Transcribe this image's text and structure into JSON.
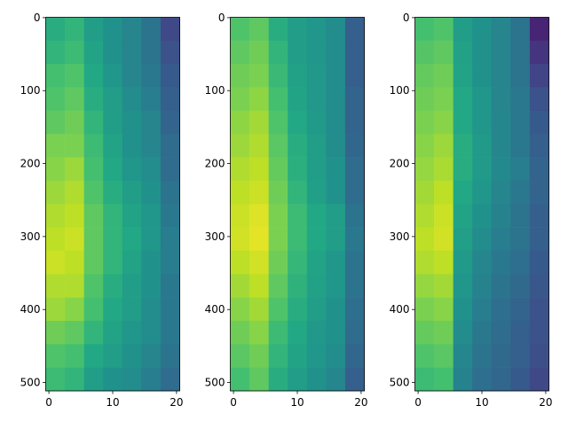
{
  "chart_data": [
    {
      "type": "heatmap",
      "colormap": "viridis",
      "xlim": [
        -0.5,
        20.5
      ],
      "ylim": [
        511.5,
        -0.5
      ],
      "xticks": [
        0,
        10,
        20
      ],
      "yticks": [
        0,
        100,
        200,
        300,
        400,
        500
      ],
      "values": [
        [
          0.62,
          0.65,
          0.55,
          0.5,
          0.45,
          0.38,
          0.22
        ],
        [
          0.65,
          0.68,
          0.58,
          0.5,
          0.45,
          0.38,
          0.25
        ],
        [
          0.7,
          0.72,
          0.6,
          0.52,
          0.45,
          0.4,
          0.28
        ],
        [
          0.72,
          0.75,
          0.62,
          0.55,
          0.48,
          0.42,
          0.3
        ],
        [
          0.75,
          0.78,
          0.65,
          0.55,
          0.5,
          0.45,
          0.32
        ],
        [
          0.8,
          0.8,
          0.68,
          0.58,
          0.5,
          0.45,
          0.35
        ],
        [
          0.82,
          0.85,
          0.7,
          0.6,
          0.52,
          0.48,
          0.35
        ],
        [
          0.85,
          0.88,
          0.72,
          0.62,
          0.55,
          0.5,
          0.38
        ],
        [
          0.88,
          0.9,
          0.75,
          0.65,
          0.58,
          0.52,
          0.4
        ],
        [
          0.9,
          0.92,
          0.75,
          0.65,
          0.6,
          0.52,
          0.42
        ],
        [
          0.92,
          0.9,
          0.75,
          0.65,
          0.58,
          0.5,
          0.42
        ],
        [
          0.88,
          0.88,
          0.72,
          0.62,
          0.55,
          0.5,
          0.4
        ],
        [
          0.85,
          0.82,
          0.7,
          0.6,
          0.55,
          0.48,
          0.4
        ],
        [
          0.78,
          0.75,
          0.65,
          0.58,
          0.52,
          0.48,
          0.4
        ],
        [
          0.72,
          0.7,
          0.6,
          0.55,
          0.5,
          0.45,
          0.38
        ],
        [
          0.68,
          0.65,
          0.55,
          0.5,
          0.48,
          0.42,
          0.35
        ]
      ]
    },
    {
      "type": "heatmap",
      "colormap": "viridis",
      "xlim": [
        -0.5,
        20.5
      ],
      "ylim": [
        511.5,
        -0.5
      ],
      "xticks": [
        0,
        10,
        20
      ],
      "yticks": [
        0,
        100,
        200,
        300,
        400,
        500
      ],
      "values": [
        [
          0.72,
          0.75,
          0.62,
          0.55,
          0.52,
          0.48,
          0.3
        ],
        [
          0.75,
          0.78,
          0.65,
          0.55,
          0.52,
          0.48,
          0.3
        ],
        [
          0.78,
          0.8,
          0.67,
          0.57,
          0.53,
          0.48,
          0.3
        ],
        [
          0.8,
          0.83,
          0.7,
          0.58,
          0.53,
          0.48,
          0.32
        ],
        [
          0.83,
          0.86,
          0.72,
          0.6,
          0.54,
          0.48,
          0.32
        ],
        [
          0.85,
          0.88,
          0.74,
          0.62,
          0.55,
          0.48,
          0.33
        ],
        [
          0.88,
          0.9,
          0.76,
          0.63,
          0.55,
          0.5,
          0.35
        ],
        [
          0.9,
          0.92,
          0.78,
          0.65,
          0.56,
          0.5,
          0.35
        ],
        [
          0.92,
          0.95,
          0.8,
          0.68,
          0.6,
          0.55,
          0.38
        ],
        [
          0.93,
          0.96,
          0.8,
          0.68,
          0.6,
          0.55,
          0.4
        ],
        [
          0.9,
          0.93,
          0.78,
          0.66,
          0.58,
          0.52,
          0.38
        ],
        [
          0.86,
          0.9,
          0.75,
          0.64,
          0.57,
          0.52,
          0.38
        ],
        [
          0.82,
          0.86,
          0.72,
          0.62,
          0.55,
          0.5,
          0.36
        ],
        [
          0.78,
          0.82,
          0.68,
          0.6,
          0.53,
          0.5,
          0.35
        ],
        [
          0.74,
          0.78,
          0.65,
          0.58,
          0.52,
          0.48,
          0.33
        ],
        [
          0.7,
          0.75,
          0.62,
          0.55,
          0.5,
          0.46,
          0.3
        ]
      ]
    },
    {
      "type": "heatmap",
      "colormap": "viridis",
      "xlim": [
        -0.5,
        20.5
      ],
      "ylim": [
        511.5,
        -0.5
      ],
      "xticks": [
        0,
        10,
        20
      ],
      "yticks": [
        0,
        100,
        200,
        300,
        400,
        500
      ],
      "values": [
        [
          0.7,
          0.72,
          0.55,
          0.5,
          0.45,
          0.38,
          0.1
        ],
        [
          0.73,
          0.75,
          0.57,
          0.5,
          0.45,
          0.38,
          0.15
        ],
        [
          0.76,
          0.78,
          0.58,
          0.5,
          0.45,
          0.38,
          0.2
        ],
        [
          0.78,
          0.8,
          0.6,
          0.52,
          0.45,
          0.4,
          0.25
        ],
        [
          0.8,
          0.82,
          0.6,
          0.52,
          0.46,
          0.4,
          0.28
        ],
        [
          0.82,
          0.85,
          0.62,
          0.54,
          0.46,
          0.4,
          0.3
        ],
        [
          0.84,
          0.87,
          0.62,
          0.54,
          0.47,
          0.42,
          0.32
        ],
        [
          0.86,
          0.9,
          0.6,
          0.52,
          0.45,
          0.4,
          0.32
        ],
        [
          0.88,
          0.92,
          0.58,
          0.5,
          0.44,
          0.38,
          0.3
        ],
        [
          0.9,
          0.93,
          0.56,
          0.48,
          0.42,
          0.38,
          0.3
        ],
        [
          0.88,
          0.9,
          0.54,
          0.46,
          0.4,
          0.36,
          0.28
        ],
        [
          0.84,
          0.86,
          0.52,
          0.44,
          0.38,
          0.34,
          0.27
        ],
        [
          0.8,
          0.82,
          0.5,
          0.42,
          0.36,
          0.32,
          0.25
        ],
        [
          0.76,
          0.78,
          0.48,
          0.4,
          0.35,
          0.3,
          0.25
        ],
        [
          0.72,
          0.74,
          0.46,
          0.38,
          0.34,
          0.3,
          0.24
        ],
        [
          0.68,
          0.7,
          0.44,
          0.36,
          0.33,
          0.28,
          0.22
        ]
      ]
    }
  ]
}
